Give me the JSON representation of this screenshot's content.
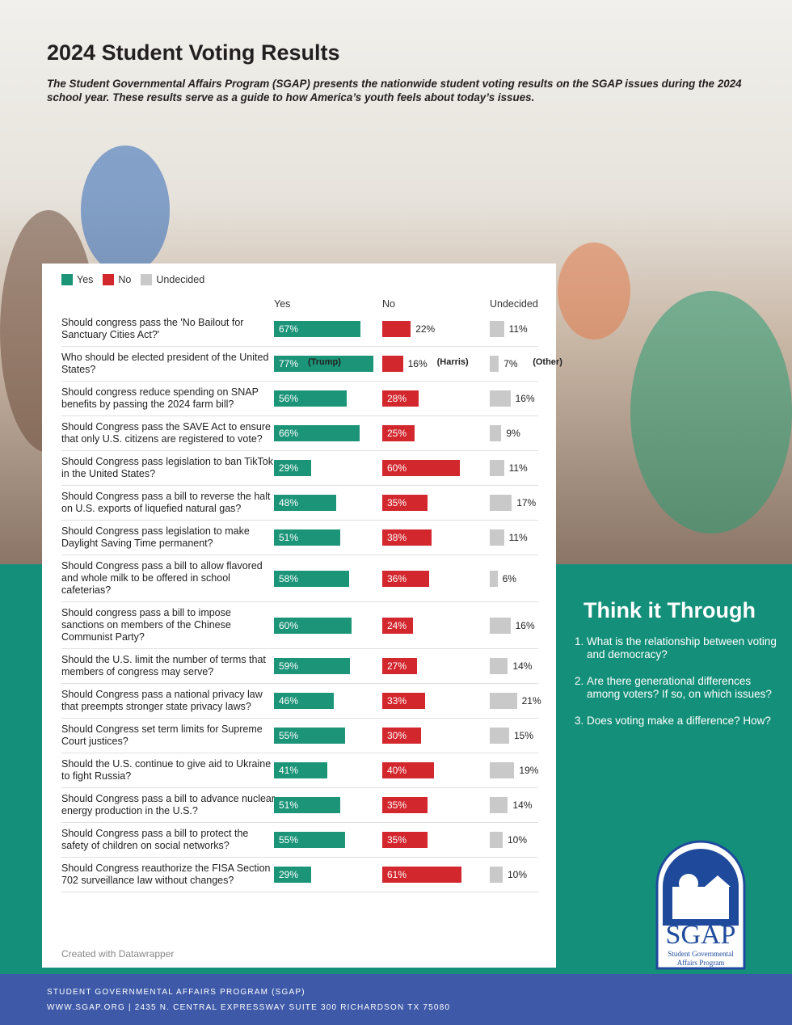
{
  "header": {
    "title": "2024 Student Voting Results",
    "intro": "The Student Governmental Affairs Program (SGAP) presents the nationwide student voting results on the SGAP issues during the 2024 school year. These results serve as a guide to how America’s youth feels about today’s issues."
  },
  "chart_data": {
    "type": "bar",
    "categories": [
      "Should congress pass the 'No Bailout for Sanctuary Cities Act?'",
      "Who should be elected president of the United States?",
      "Should congress reduce spending on SNAP benefits by passing the 2024 farm bill?",
      "Should Congress pass the SAVE Act to ensure that only U.S. citizens are registered to vote?",
      "Should Congress pass legislation to ban TikTok in the United States?",
      "Should Congress pass a bill to reverse the halt on U.S. exports of liquefied natural gas?",
      "Should Congress pass legislation to make Daylight Saving Time permanent?",
      "Should Congress pass a bill to allow flavored and whole milk to be offered in school cafeterias?",
      "Should congress pass a bill to impose sanctions on members of the Chinese Communist Party?",
      "Should the U.S. limit the number of terms that members of congress may serve?",
      "Should Congress pass a national privacy law that preempts stronger state privacy laws?",
      "Should Congress set term limits for Supreme Court justices?",
      "Should the U.S. continue to give aid to Ukraine to fight Russia?",
      "Should Congress pass a bill to advance nuclear energy production in the U.S.?",
      "Should Congress pass a bill to protect the safety of children on social networks?",
      "Should Congress reauthorize the FISA Section 702 surveillance law without changes?"
    ],
    "series": [
      {
        "name": "Yes",
        "color": "#1b9478",
        "values": [
          67,
          77,
          56,
          66,
          29,
          48,
          51,
          58,
          60,
          59,
          46,
          55,
          41,
          51,
          55,
          29
        ],
        "value_labels": [
          "67%",
          "77%",
          "56%",
          "66%",
          "29%",
          "48%",
          "51%",
          "58%",
          "60%",
          "59%",
          "46%",
          "55%",
          "41%",
          "51%",
          "55%",
          "29%"
        ],
        "notes": [
          null,
          "(Trump)",
          null,
          null,
          null,
          null,
          null,
          null,
          null,
          null,
          null,
          null,
          null,
          null,
          null,
          null
        ]
      },
      {
        "name": "No",
        "color": "#d3272e",
        "values": [
          22,
          16,
          28,
          25,
          60,
          35,
          38,
          36,
          24,
          27,
          33,
          30,
          40,
          35,
          35,
          61
        ],
        "value_labels": [
          "22%",
          "16%",
          "28%",
          "25%",
          "60%",
          "35%",
          "38%",
          "36%",
          "24%",
          "27%",
          "33%",
          "30%",
          "40%",
          "35%",
          "35%",
          "61%"
        ],
        "notes": [
          null,
          "(Harris)",
          null,
          null,
          null,
          null,
          null,
          null,
          null,
          null,
          null,
          null,
          null,
          null,
          null,
          null
        ]
      },
      {
        "name": "Undecided",
        "color": "#c9c9c9",
        "values": [
          11,
          7,
          16,
          9,
          11,
          17,
          11,
          6,
          16,
          14,
          21,
          15,
          19,
          14,
          10,
          10
        ],
        "value_labels": [
          "11%",
          "7%",
          "16%",
          "9%",
          "11%",
          "17%",
          "11%",
          "6%",
          "16%",
          "14%",
          "21%",
          "15%",
          "19%",
          "14%",
          "10%",
          "10%"
        ],
        "notes": [
          null,
          "(Other)",
          null,
          null,
          null,
          null,
          null,
          null,
          null,
          null,
          null,
          null,
          null,
          null,
          null,
          null
        ]
      }
    ],
    "credit": "Created with Datawrapper"
  },
  "sidebar": {
    "title": "Think it Through",
    "items": [
      "What is the relationship between voting and democracy?",
      "Are there generational differences among voters? If so, on which issues?",
      "Does voting make a difference? How?"
    ]
  },
  "logo": {
    "name": "SGAP",
    "line1": "Student Governmental",
    "line2": "Affairs Program"
  },
  "footer": {
    "line1": "STUDENT GOVERNMENTAL AFFAIRS PROGRAM (SGAP)",
    "line2": "WWW.SGAP.ORG | 2435 N. CENTRAL EXPRESSWAY SUITE 300 RICHARDSON TX 75080"
  }
}
